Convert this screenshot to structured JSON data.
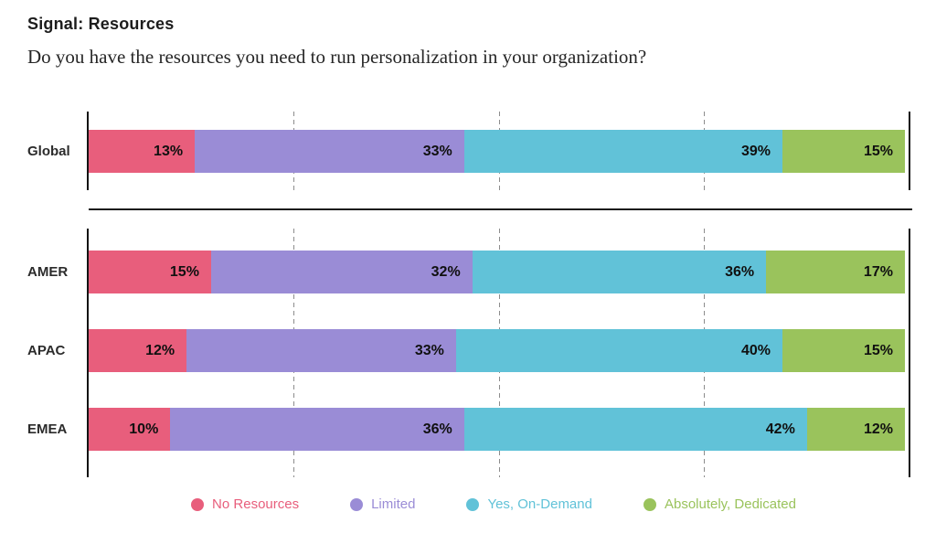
{
  "header": {
    "title": "Signal: Resources",
    "subtitle": "Do you have the resources you need to run personalization in your organization?"
  },
  "chart_data": {
    "type": "bar",
    "orientation": "horizontal",
    "stacked": true,
    "unit": "%",
    "title": "Signal: Resources",
    "subtitle": "Do you have the resources you need to run personalization in your organization?",
    "categories": [
      "Global",
      "AMER",
      "APAC",
      "EMEA"
    ],
    "groups": [
      [
        "Global"
      ],
      [
        "AMER",
        "APAC",
        "EMEA"
      ]
    ],
    "series": [
      {
        "name": "No Resources",
        "color": "#E85E7C",
        "values": [
          13,
          15,
          12,
          10
        ]
      },
      {
        "name": "Limited",
        "color": "#9A8CD6",
        "values": [
          33,
          32,
          33,
          36
        ]
      },
      {
        "name": "Yes, On-Demand",
        "color": "#61C2D8",
        "values": [
          39,
          36,
          40,
          42
        ]
      },
      {
        "name": "Absolutely, Dedicated",
        "color": "#9AC35C",
        "values": [
          15,
          17,
          15,
          12
        ]
      }
    ],
    "rows": {
      "Global": [
        13,
        33,
        39,
        15
      ],
      "AMER": [
        15,
        32,
        36,
        17
      ],
      "APAC": [
        12,
        33,
        40,
        15
      ],
      "EMEA": [
        10,
        36,
        42,
        12
      ]
    },
    "xlim": [
      0,
      100
    ],
    "gridlines_percent": [
      25,
      50,
      75
    ],
    "grid_style": "dashed",
    "legend_position": "bottom",
    "value_label_format": "{v}%"
  },
  "colors": {
    "axis": "#141414",
    "gridline": "#8c8c8c",
    "value_label": "#101010",
    "text": "#1c1c1c"
  }
}
